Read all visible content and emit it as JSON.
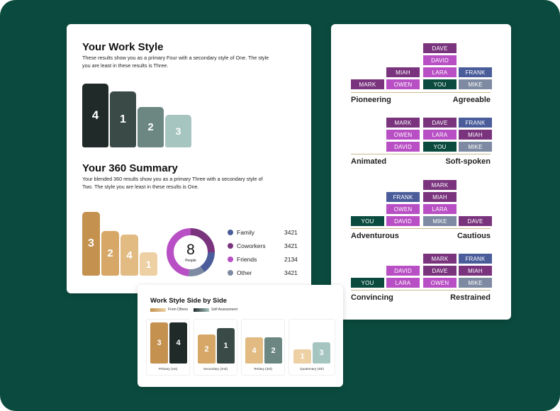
{
  "work_style": {
    "title": "Your Work Style",
    "description": "These results show you as a primary Four with a secondary style of One. The style you are least in these results is Three.",
    "bars": [
      {
        "label": "4",
        "color": "#1f2a29"
      },
      {
        "label": "1",
        "color": "#3a4a47"
      },
      {
        "label": "2",
        "color": "#6c8782"
      },
      {
        "label": "3",
        "color": "#a7c5c0"
      }
    ]
  },
  "summary_360": {
    "title": "Your 360 Summary",
    "description": "Your blended 360 results show you as a primary Three with a secondary style of Two. The style you are least in these results is One.",
    "bars": [
      {
        "label": "3",
        "color": "#c4914f"
      },
      {
        "label": "2",
        "color": "#d6a766"
      },
      {
        "label": "4",
        "color": "#e2bb82"
      },
      {
        "label": "1",
        "color": "#edd0a4"
      }
    ],
    "donut": {
      "number": "8",
      "unit": "People"
    },
    "legend": [
      {
        "label": "Family",
        "value": "3421",
        "color": "#4a5d9a"
      },
      {
        "label": "Coworkers",
        "value": "3421",
        "color": "#7a347e"
      },
      {
        "label": "Friends",
        "value": "2134",
        "color": "#b84fc4"
      },
      {
        "label": "Other",
        "value": "3421",
        "color": "#7d8aa1"
      }
    ]
  },
  "side_by_side": {
    "title": "Work Style Side by Side",
    "legend_others": "From Others",
    "legend_self": "Self Assessment",
    "groups": [
      {
        "label": "Primary (1st)",
        "others": "3",
        "self": "4"
      },
      {
        "label": "Secondary (2nd)",
        "others": "2",
        "self": "1"
      },
      {
        "label": "Tertiary (3rd)",
        "others": "4",
        "self": "2"
      },
      {
        "label": "Quaternary (4th)",
        "others": "1",
        "self": "3"
      }
    ]
  },
  "scales": [
    {
      "left": "Pioneering",
      "right": "Agreeable"
    },
    {
      "left": "Animated",
      "right": "Soft-spoken"
    },
    {
      "left": "Adventurous",
      "right": "Cautious"
    },
    {
      "left": "Convincing",
      "right": "Restrained"
    }
  ],
  "tags": [
    {
      "text": "DAVE",
      "color": "#7a347e"
    },
    {
      "text": "DAVID",
      "color": "#b84fc4"
    },
    {
      "text": "MIAH",
      "color": "#7a347e"
    },
    {
      "text": "LARA",
      "color": "#b84fc4"
    },
    {
      "text": "FRANK",
      "color": "#4a5d9a"
    },
    {
      "text": "MARK",
      "color": "#7a347e"
    },
    {
      "text": "OWEN",
      "color": "#b84fc4"
    },
    {
      "text": "YOU",
      "color": "#0b4b3f"
    },
    {
      "text": "MIKE",
      "color": "#7d8aa1"
    },
    {
      "text": "MARK",
      "color": "#7a347e"
    },
    {
      "text": "DAVE",
      "color": "#7a347e"
    },
    {
      "text": "FRANK",
      "color": "#4a5d9a"
    },
    {
      "text": "OWEN",
      "color": "#b84fc4"
    },
    {
      "text": "LARA",
      "color": "#b84fc4"
    },
    {
      "text": "MIAH",
      "color": "#7a347e"
    },
    {
      "text": "DAVID",
      "color": "#b84fc4"
    },
    {
      "text": "YOU",
      "color": "#0b4b3f"
    },
    {
      "text": "MIKE",
      "color": "#7d8aa1"
    },
    {
      "text": "MARK",
      "color": "#7a347e"
    },
    {
      "text": "FRANK",
      "color": "#4a5d9a"
    },
    {
      "text": "MIAH",
      "color": "#7a347e"
    },
    {
      "text": "OWEN",
      "color": "#b84fc4"
    },
    {
      "text": "LARA",
      "color": "#b84fc4"
    },
    {
      "text": "YOU",
      "color": "#0b4b3f"
    },
    {
      "text": "DAVID",
      "color": "#b84fc4"
    },
    {
      "text": "MIKE",
      "color": "#7d8aa1"
    },
    {
      "text": "DAVE",
      "color": "#7a347e"
    },
    {
      "text": "MARK",
      "color": "#7a347e"
    },
    {
      "text": "FRANK",
      "color": "#4a5d9a"
    },
    {
      "text": "DAVID",
      "color": "#b84fc4"
    },
    {
      "text": "DAVE",
      "color": "#7a347e"
    },
    {
      "text": "MIAH",
      "color": "#7a347e"
    },
    {
      "text": "YOU",
      "color": "#0b4b3f"
    },
    {
      "text": "LARA",
      "color": "#b84fc4"
    },
    {
      "text": "OWEN",
      "color": "#b84fc4"
    },
    {
      "text": "MIKE",
      "color": "#7d8aa1"
    }
  ]
}
